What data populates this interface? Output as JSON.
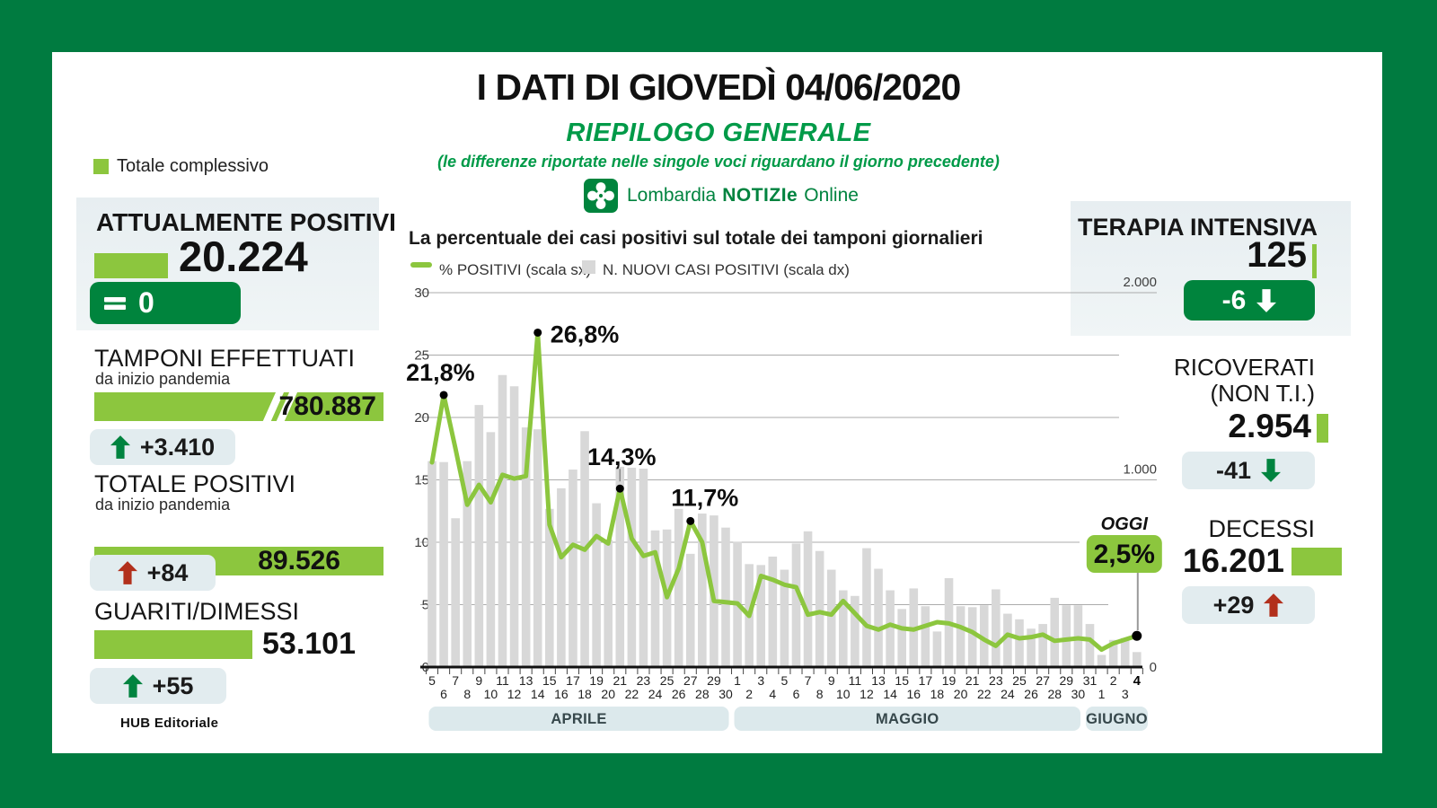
{
  "header": {
    "title": "I DATI DI GIOVEDÌ 04/06/2020",
    "subtitle": "RIEPILOGO GENERALE",
    "note": "(le differenze riportate nelle singole voci riguardano il giorno precedente)",
    "total_legend": "Totale complessivo"
  },
  "logo": {
    "region": "Lombardia",
    "brand": "NOTIZIe",
    "suffix": "Online"
  },
  "left": {
    "attualmente": {
      "title": "ATTUALMENTE POSITIVI",
      "value": "20.224",
      "delta": "0",
      "delta_dir": "equal"
    },
    "tamponi": {
      "title": "TAMPONI EFFETTUATI",
      "subtitle": "da inizio pandemia",
      "value": "780.887",
      "delta": "+3.410",
      "delta_dir": "up",
      "delta_color": "#00833F"
    },
    "totale": {
      "title": "TOTALE POSITIVI",
      "subtitle": "da inizio pandemia",
      "value": "89.526",
      "delta": "+84",
      "delta_dir": "up",
      "delta_color": "#B2301C"
    },
    "guariti": {
      "title": "GUARITI/DIMESSI",
      "value": "53.101",
      "delta": "+55",
      "delta_dir": "up",
      "delta_color": "#00833F"
    }
  },
  "right": {
    "terapia": {
      "title": "TERAPIA INTENSIVA",
      "value": "125",
      "delta": "-6",
      "delta_dir": "down"
    },
    "ricoverati": {
      "title_line1": "RICOVERATI",
      "title_line2": "(NON T.I.)",
      "value": "2.954",
      "delta": "-41",
      "delta_dir": "down",
      "delta_color": "#00833F"
    },
    "decessi": {
      "title": "DECESSI",
      "value": "16.201",
      "delta": "+29",
      "delta_dir": "up",
      "delta_color": "#B2301C"
    }
  },
  "footer": {
    "credit": "HUB Editoriale"
  },
  "chart_data": {
    "type": "combo",
    "title": "La percentuale dei casi positivi sul totale dei tamponi giornalieri",
    "legend": [
      {
        "label": "% POSITIVI (scala sx)",
        "marker": "line",
        "color": "#8CC63E"
      },
      {
        "label": "N. NUOVI CASI POSITIVI (scala dx)",
        "marker": "square",
        "color": "#D8D8D8"
      }
    ],
    "months": [
      {
        "label": "APRILE",
        "first_day": 5,
        "last_day": 30
      },
      {
        "label": "MAGGIO",
        "first_day": 1,
        "last_day": 31
      },
      {
        "label": "GIUGNO",
        "first_day": 1,
        "last_day": 4
      }
    ],
    "axis_left": {
      "min": 0,
      "max": 30,
      "ticks": [
        0,
        5,
        10,
        15,
        20,
        25,
        30
      ]
    },
    "axis_right": {
      "min": 0,
      "max": 2000,
      "labels": [
        {
          "value": 2000,
          "text": "2.000"
        },
        {
          "value": 1000,
          "text": "1.000"
        },
        {
          "value": 0,
          "text": "0"
        }
      ]
    },
    "series": [
      {
        "name": "% POSITIVI",
        "type": "line",
        "axis": "left",
        "color": "#8CC63E",
        "values": [
          16.4,
          21.8,
          17.5,
          13.0,
          14.6,
          13.2,
          15.4,
          15.1,
          15.3,
          26.8,
          11.4,
          8.8,
          9.8,
          9.4,
          10.5,
          9.9,
          14.3,
          10.3,
          8.9,
          9.2,
          5.6,
          7.9,
          11.7,
          10.0,
          5.3,
          5.2,
          5.1,
          4.1,
          7.3,
          7.0,
          6.6,
          6.4,
          4.2,
          4.4,
          4.2,
          5.3,
          4.3,
          3.3,
          3.0,
          3.4,
          3.1,
          3.0,
          3.3,
          3.6,
          3.5,
          3.2,
          2.8,
          2.2,
          1.7,
          2.6,
          2.3,
          2.4,
          2.6,
          2.1,
          2.2,
          2.3,
          2.2,
          1.4,
          1.9,
          2.2,
          2.5
        ]
      },
      {
        "name": "N. NUOVI CASI POSITIVI",
        "type": "bar",
        "axis": "right",
        "color": "#D8D8D8",
        "values": [
          1100,
          1095,
          795,
          1100,
          1400,
          1255,
          1560,
          1500,
          1280,
          1270,
          845,
          955,
          1055,
          1260,
          875,
          680,
          1070,
          1065,
          1060,
          730,
          735,
          845,
          605,
          820,
          810,
          745,
          670,
          550,
          545,
          590,
          520,
          660,
          725,
          620,
          520,
          410,
          380,
          635,
          525,
          410,
          310,
          420,
          325,
          190,
          475,
          325,
          320,
          330,
          415,
          285,
          255,
          205,
          230,
          370,
          330,
          330,
          230,
          65,
          145,
          155,
          80
        ]
      }
    ],
    "annotations": [
      {
        "index": 1,
        "label": "21,8%",
        "align": "left-above"
      },
      {
        "index": 9,
        "label": "26,8%",
        "align": "right"
      },
      {
        "index": 16,
        "label": "14,3%",
        "align": "above-leader"
      },
      {
        "index": 22,
        "label": "11,7%",
        "align": "above"
      },
      {
        "index": 60,
        "label": "2,5%",
        "align": "today",
        "today_label": "OGGI"
      }
    ]
  }
}
